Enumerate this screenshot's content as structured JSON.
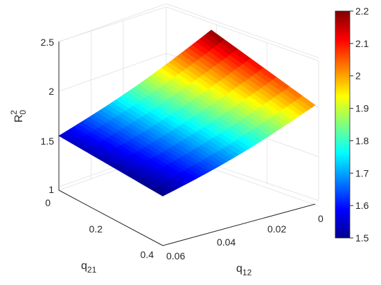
{
  "chart_data": {
    "type": "surface",
    "title": "",
    "zlabel": "R_0^2",
    "xlabel": "q_12",
    "ylabel": "q_21",
    "x_range": [
      0,
      0.06
    ],
    "y_range": [
      0,
      0.4
    ],
    "zlim": [
      1,
      2.5
    ],
    "x_ticks": [
      "0.06",
      "0.04",
      "0.02",
      "0"
    ],
    "y_ticks": [
      "0",
      "0.2",
      "0.4"
    ],
    "z_ticks": [
      "1",
      "1.5",
      "2",
      "2.5"
    ],
    "corner_values": [
      {
        "q12": 0.06,
        "q21": 0.0,
        "R0sq": 1.55
      },
      {
        "q12": 0.06,
        "q21": 0.4,
        "R0sq": 1.5
      },
      {
        "q12": 0.0,
        "q21": 0.0,
        "R0sq": 2.2
      },
      {
        "q12": 0.0,
        "q21": 0.4,
        "R0sq": 2.0
      }
    ],
    "note_shape": "R0^2 increases as q12 decreases; weak dependence on q21",
    "colorbar": {
      "colormap": "jet",
      "range": [
        1.5,
        2.2
      ],
      "ticks": [
        "1.5",
        "1.6",
        "1.7",
        "1.8",
        "1.9",
        "2",
        "2.1",
        "2.2"
      ]
    },
    "grid": true
  }
}
